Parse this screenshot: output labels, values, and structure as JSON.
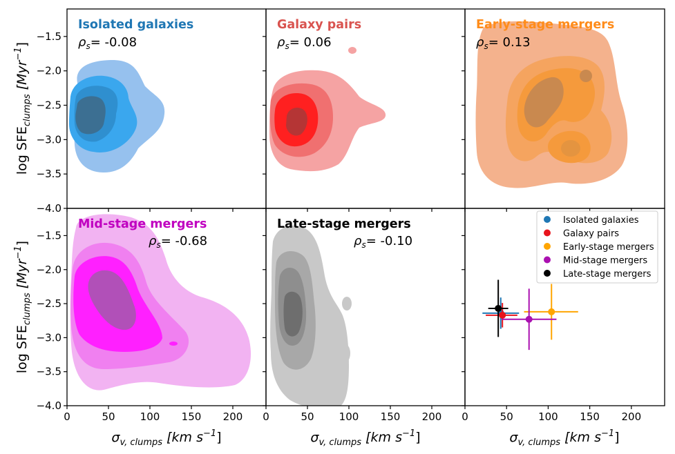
{
  "figure": {
    "ylabel_main": "log SFE",
    "ylabel_sub": "clumps",
    "ylabel_unit": "[Myr",
    "ylabel_exp": "−1",
    "ylabel_close": "]",
    "xlabel_main": "σ",
    "xlabel_sub": "v, clumps",
    "xlabel_unit": "[km s",
    "xlabel_exp": "−1",
    "xlabel_close": "]"
  },
  "panels": [
    {
      "title": "Isolated galaxies",
      "title_color": "#1f77b4",
      "rho_label": "ρ",
      "rho_sub": "s",
      "rho_value": "= -0.08"
    },
    {
      "title": "Galaxy pairs",
      "title_color": "#d9534f",
      "rho_label": "ρ",
      "rho_sub": "s",
      "rho_value": "= 0.06"
    },
    {
      "title": "Early-stage mergers",
      "title_color": "#ff8c1a",
      "rho_label": "ρ",
      "rho_sub": "s",
      "rho_value": "= 0.13"
    },
    {
      "title": "Mid-stage mergers",
      "title_color": "#c000c0",
      "rho_label": "ρ",
      "rho_sub": "s",
      "rho_value": "= -0.68"
    },
    {
      "title": "Late-stage mergers",
      "title_color": "#000000",
      "rho_label": "ρ",
      "rho_sub": "s",
      "rho_value": "= -0.10"
    }
  ],
  "chart_data": [
    {
      "type": "contour",
      "panel": "Isolated galaxies",
      "color": "#3aa0f0",
      "xlim": [
        0,
        240
      ],
      "ylim": [
        -4.0,
        -1.1
      ],
      "xticks": [
        0,
        50,
        100,
        150,
        200
      ],
      "yticks": [
        -4.0,
        -3.5,
        -3.0,
        -2.5,
        -2.0,
        -1.5
      ],
      "rho_s": -0.08,
      "peak": {
        "x": 25,
        "y": -2.65
      }
    },
    {
      "type": "contour",
      "panel": "Galaxy pairs",
      "color": "#ff3030",
      "xlim": [
        0,
        240
      ],
      "ylim": [
        -4.0,
        -1.1
      ],
      "rho_s": 0.06,
      "peak": {
        "x": 33,
        "y": -2.7
      }
    },
    {
      "type": "contour",
      "panel": "Early-stage mergers",
      "color": "#ff9a3c",
      "xlim": [
        0,
        240
      ],
      "ylim": [
        -4.0,
        -1.1
      ],
      "rho_s": 0.13,
      "peak": {
        "x": 100,
        "y": -2.4
      }
    },
    {
      "type": "contour",
      "panel": "Mid-stage mergers",
      "color": "#f030f0",
      "xlim": [
        0,
        240
      ],
      "ylim": [
        -4.0,
        -1.1
      ],
      "rho_s": -0.68,
      "peak": {
        "x": 60,
        "y": -2.5
      }
    },
    {
      "type": "contour",
      "panel": "Late-stage mergers",
      "color": "#a0a0a0",
      "xlim": [
        0,
        240
      ],
      "ylim": [
        -4.0,
        -1.1
      ],
      "rho_s": -0.1,
      "peak": {
        "x": 30,
        "y": -2.6
      }
    },
    {
      "type": "scatter",
      "panel": "summary",
      "xlim": [
        0,
        240
      ],
      "ylim": [
        -4.0,
        -1.1
      ],
      "legend_position": "top-right",
      "series": [
        {
          "name": "Isolated galaxies",
          "color": "#1f77b4",
          "x": 43,
          "y": -2.64,
          "xerr": [
            22,
            22
          ],
          "yerr": [
            0.23,
            0.23
          ]
        },
        {
          "name": "Galaxy pairs",
          "color": "#e8141c",
          "x": 45,
          "y": -2.67,
          "xerr": [
            20,
            18
          ],
          "yerr": [
            0.18,
            0.18
          ]
        },
        {
          "name": "Early-stage mergers",
          "color": "#ffa500",
          "x": 104,
          "y": -2.62,
          "xerr": [
            33,
            32
          ],
          "yerr": [
            0.41,
            0.41
          ]
        },
        {
          "name": "Mid-stage mergers",
          "color": "#aa10b0",
          "x": 77,
          "y": -2.73,
          "xerr": [
            33,
            33
          ],
          "yerr": [
            0.45,
            0.45
          ]
        },
        {
          "name": "Late-stage mergers",
          "color": "#000000",
          "x": 40,
          "y": -2.57,
          "xerr": [
            12,
            12
          ],
          "yerr": [
            0.42,
            0.42
          ]
        }
      ]
    }
  ]
}
